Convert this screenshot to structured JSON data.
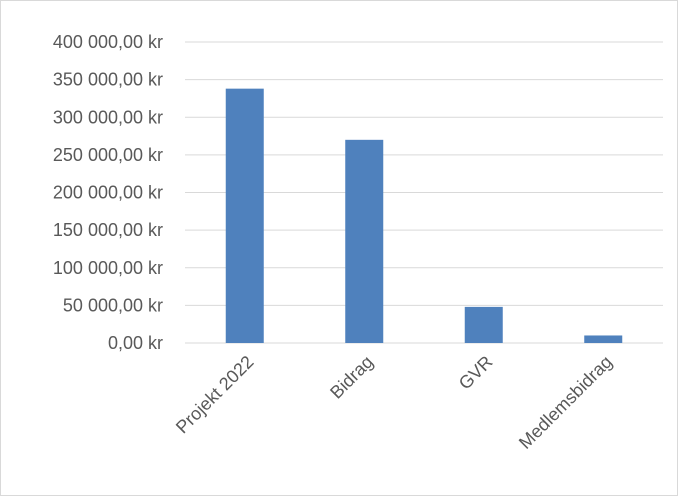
{
  "chart_data": {
    "type": "bar",
    "title": "",
    "xlabel": "",
    "ylabel": "",
    "categories": [
      "Projekt 2022",
      "Bidrag",
      "GVR",
      "Medlemsbidrag"
    ],
    "values": [
      338000,
      270000,
      48000,
      10000
    ],
    "ylim": [
      0,
      400000
    ],
    "yticks": [
      0,
      50000,
      100000,
      150000,
      200000,
      250000,
      300000,
      350000,
      400000
    ],
    "ytick_labels": [
      "0,00 kr",
      "50 000,00 kr",
      "100 000,00 kr",
      "150 000,00 kr",
      "200 000,00 kr",
      "250 000,00 kr",
      "300 000,00 kr",
      "350 000,00 kr",
      "400 000,00 kr"
    ],
    "grid": true,
    "legend": "none",
    "bar_color": "#4f81bd",
    "grid_color": "#d9d9d9",
    "text_color": "#595959"
  }
}
